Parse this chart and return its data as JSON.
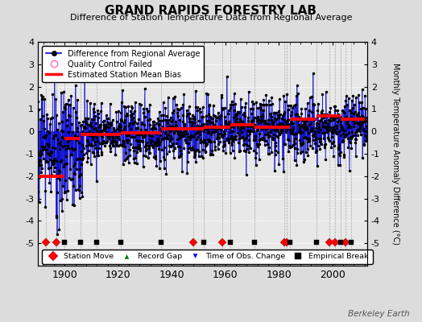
{
  "title": "GRAND RAPIDS FORESTRY LAB",
  "subtitle": "Difference of Station Temperature Data from Regional Average",
  "ylabel": "Monthly Temperature Anomaly Difference (°C)",
  "xlabel_ticks": [
    1900,
    1920,
    1940,
    1960,
    1980,
    2000
  ],
  "ylim": [
    -6,
    4
  ],
  "yticks_right": [
    -5,
    -4,
    -3,
    -2,
    -1,
    0,
    1,
    2,
    3,
    4
  ],
  "yticks_left": [
    -5,
    -4,
    -3,
    -2,
    -1,
    0,
    1,
    2,
    3,
    4
  ],
  "xlim": [
    1890,
    2013
  ],
  "bg_color": "#dcdcdc",
  "plot_bg_color": "#e8e8e8",
  "line_color": "#0000cc",
  "dot_color": "#000000",
  "bias_color": "#ff0000",
  "station_move_color": "#ff0000",
  "record_gap_color": "#008000",
  "tobs_color": "#0000ff",
  "empirical_break_color": "#000000",
  "qc_fail_color": "#ff69b4",
  "seed": 42,
  "start_year": 1890,
  "end_year": 2012,
  "station_moves": [
    1893,
    1897,
    1948,
    1959,
    1982,
    1983,
    1999,
    2001,
    2005
  ],
  "empirical_breaks": [
    1900,
    1906,
    1912,
    1921,
    1936,
    1952,
    1962,
    1971,
    1984,
    1994,
    2003,
    2007
  ],
  "bias_segments": [
    {
      "start": 1890,
      "end": 1900,
      "value": -2.0
    },
    {
      "start": 1900,
      "end": 1906,
      "value": -0.3
    },
    {
      "start": 1906,
      "end": 1912,
      "value": -0.15
    },
    {
      "start": 1912,
      "end": 1921,
      "value": -0.15
    },
    {
      "start": 1921,
      "end": 1936,
      "value": -0.05
    },
    {
      "start": 1936,
      "end": 1952,
      "value": 0.1
    },
    {
      "start": 1952,
      "end": 1962,
      "value": 0.2
    },
    {
      "start": 1962,
      "end": 1971,
      "value": 0.3
    },
    {
      "start": 1971,
      "end": 1984,
      "value": 0.2
    },
    {
      "start": 1984,
      "end": 1994,
      "value": 0.55
    },
    {
      "start": 1994,
      "end": 2003,
      "value": 0.7
    },
    {
      "start": 2003,
      "end": 2012,
      "value": 0.55
    }
  ],
  "watermark": "Berkeley Earth",
  "figure_size": [
    5.24,
    4.0
  ],
  "dpi": 100
}
